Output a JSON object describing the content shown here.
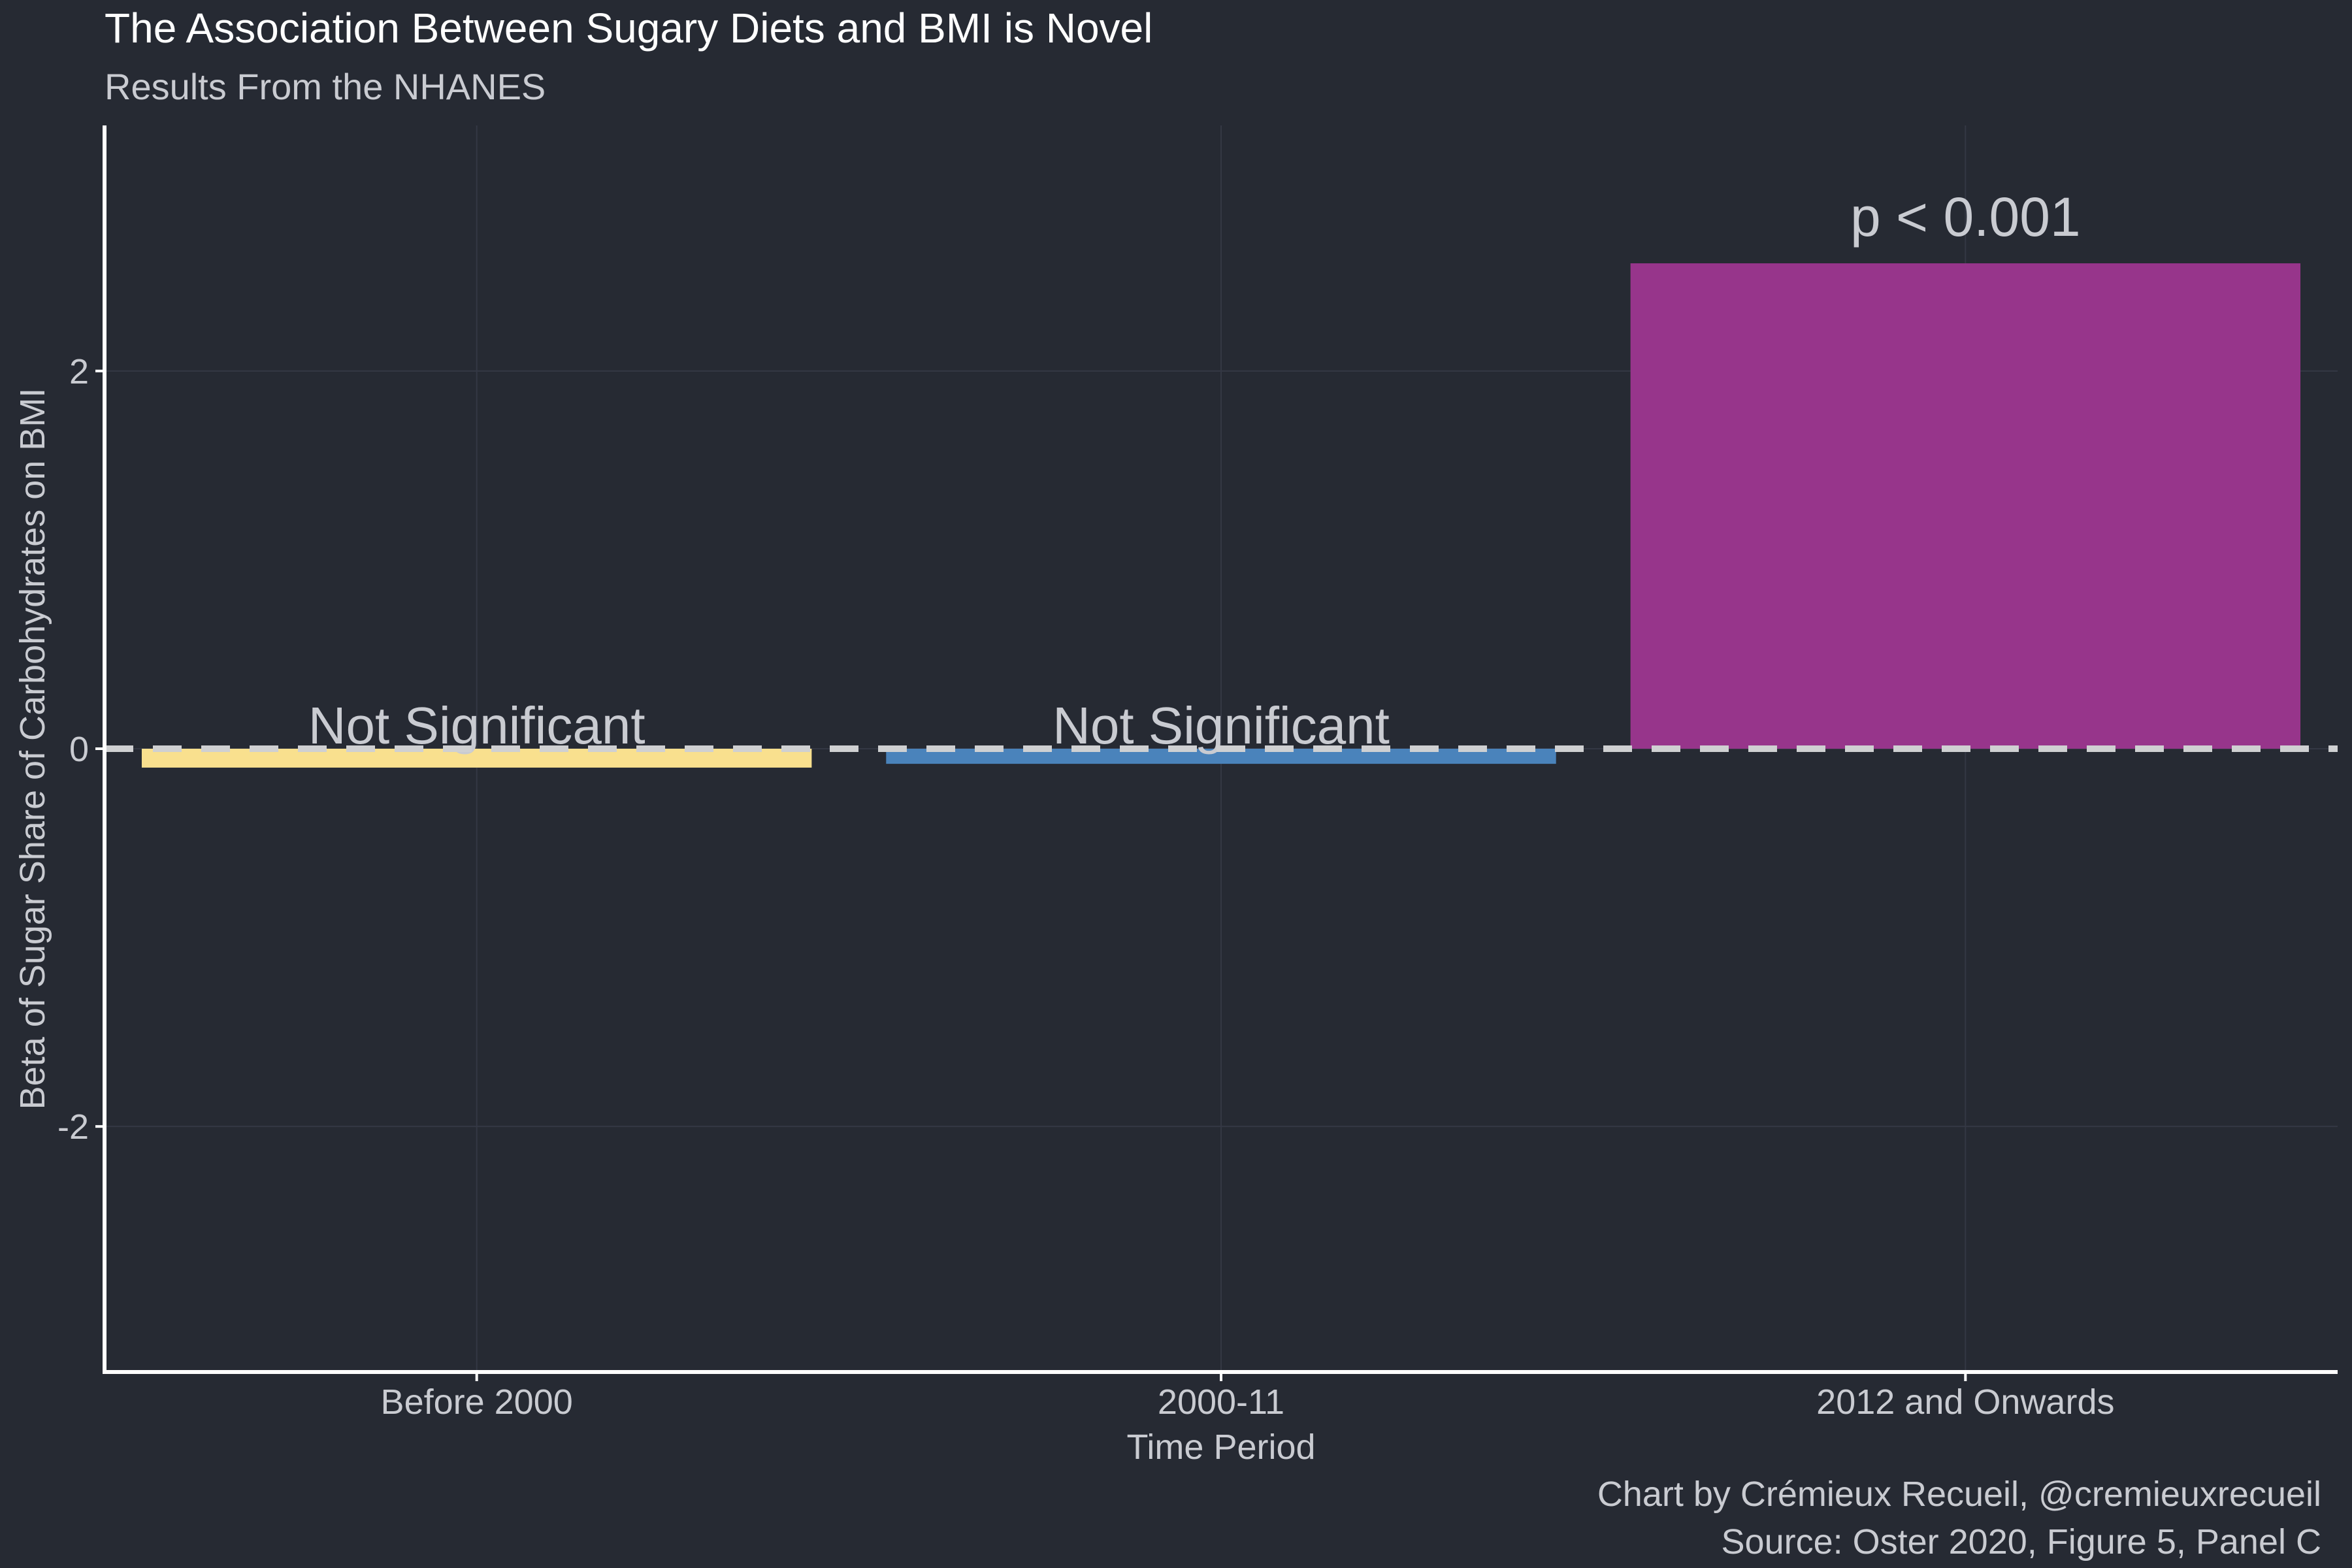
{
  "chart_data": {
    "type": "bar",
    "title": "The Association Between Sugary Diets and BMI is Novel",
    "subtitle": "Results From the NHANES",
    "xlabel": "Time Period",
    "ylabel": "Beta of Sugar Share of Carbohydrates on BMI",
    "categories": [
      "Before 2000",
      "2000-11",
      "2012 and Onwards"
    ],
    "values": [
      -0.1,
      -0.08,
      2.57
    ],
    "bar_colors": [
      "#f9e08e",
      "#4a83bb",
      "#97358b"
    ],
    "bar_labels": [
      "Not Significant",
      "Not Significant",
      "p < 0.001"
    ],
    "ylim": [
      -3.3,
      3.3
    ],
    "y_ticks": [
      -2,
      0,
      2
    ],
    "y_tick_labels": [
      "-2",
      "0",
      "2"
    ],
    "reference_line": 0,
    "grid": true,
    "caption_lines": [
      "Chart by Crémieux Recueil, @cremieuxrecueil",
      "Source: Oster 2020, Figure 5, Panel C"
    ]
  },
  "colors": {
    "background": "#262a33",
    "text": "#c9cbd1",
    "title_text": "#ffffff",
    "axis_line": "#ffffff",
    "grid": "#343844",
    "reference_line": "#cfd0d2"
  }
}
